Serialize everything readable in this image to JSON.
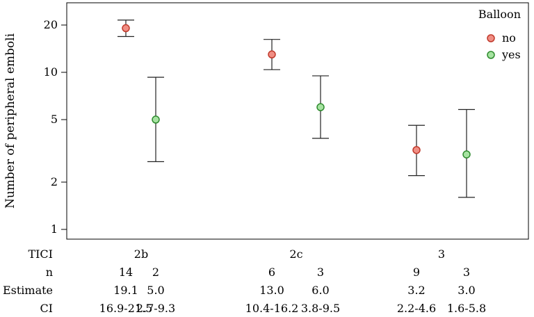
{
  "chart_data": {
    "type": "scatter",
    "ylabel": "Number of peripheral emboli",
    "y_scale": "log",
    "ylim": [
      0.87,
      26
    ],
    "y_ticks": [
      1,
      2,
      5,
      10,
      20
    ],
    "y_tick_labels": [
      "1",
      "2",
      "5",
      "10",
      "20"
    ],
    "grid": false,
    "legend": {
      "title": "Balloon",
      "position": "top-right",
      "entries": [
        {
          "label": "no",
          "color": "#e8675c",
          "fill": "#f08e84",
          "stroke": "#c0392b"
        },
        {
          "label": "yes",
          "color": "#5fc45f",
          "fill": "#a6e3a1",
          "stroke": "#2e8b2e"
        }
      ]
    },
    "groups": [
      "2b",
      "2c",
      "3"
    ],
    "series": [
      {
        "name": "no",
        "points": [
          {
            "group": "2b",
            "estimate": 19.1,
            "ci_low": 16.9,
            "ci_high": 21.5
          },
          {
            "group": "2c",
            "estimate": 13.0,
            "ci_low": 10.4,
            "ci_high": 16.2
          },
          {
            "group": "3",
            "estimate": 3.2,
            "ci_low": 2.2,
            "ci_high": 4.6
          }
        ]
      },
      {
        "name": "yes",
        "points": [
          {
            "group": "2b",
            "estimate": 5.0,
            "ci_low": 2.7,
            "ci_high": 9.3
          },
          {
            "group": "2c",
            "estimate": 6.0,
            "ci_low": 3.8,
            "ci_high": 9.5
          },
          {
            "group": "3",
            "estimate": 3.0,
            "ci_low": 1.6,
            "ci_high": 5.8
          }
        ]
      }
    ],
    "table": {
      "row_labels": [
        "TICI",
        "n",
        "Estimate",
        "CI"
      ],
      "tici": [
        "2b",
        "2c",
        "3"
      ],
      "columns": [
        {
          "n": "14",
          "estimate": "19.1",
          "ci": "16.9-21.5"
        },
        {
          "n": "2",
          "estimate": "5.0",
          "ci": "2.7-9.3"
        },
        {
          "n": "6",
          "estimate": "13.0",
          "ci": "10.4-16.2"
        },
        {
          "n": "3",
          "estimate": "6.0",
          "ci": "3.8-9.5"
        },
        {
          "n": "9",
          "estimate": "3.2",
          "ci": "2.2-4.6"
        },
        {
          "n": "3",
          "estimate": "3.0",
          "ci": "1.6-5.8"
        }
      ]
    }
  }
}
